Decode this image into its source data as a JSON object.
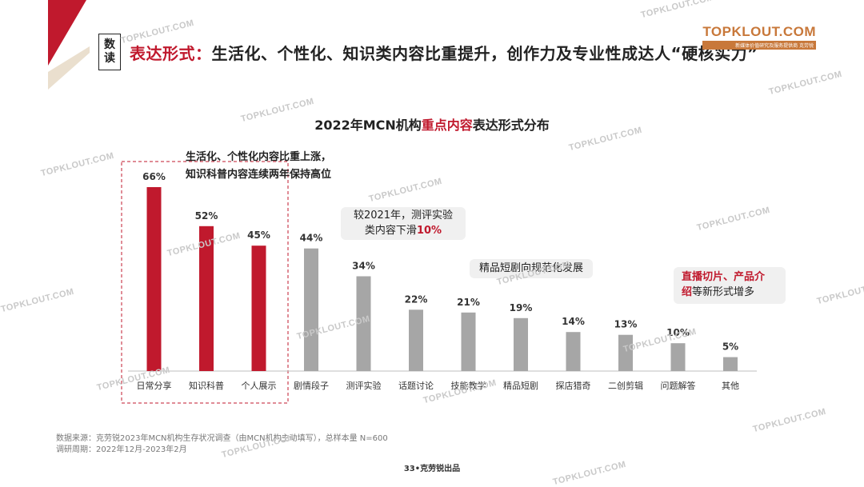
{
  "header": {
    "badge": "数读",
    "headline_prefix": "表达形式：",
    "headline_rest": "生活化、个性化、知识类内容比重提升，创作力及专业性成达人“硬核实力”"
  },
  "logo": {
    "brand": "TOPKLOUT.COM",
    "tagline": "新媒体价值研究及服务提供商 克劳锐"
  },
  "chart_title": {
    "before": "2022年MCN机构",
    "highlight": "重点内容",
    "after": "表达形式分布"
  },
  "chart_data": {
    "type": "bar",
    "title": "2022年MCN机构重点内容表达形式分布",
    "categories": [
      "日常分享",
      "知识科普",
      "个人展示",
      "剧情段子",
      "测评实验",
      "话题讨论",
      "技能教学",
      "精品短剧",
      "探店猎奇",
      "二创剪辑",
      "问题解答",
      "其他"
    ],
    "values": [
      66,
      52,
      45,
      44,
      34,
      22,
      21,
      19,
      14,
      13,
      10,
      5
    ],
    "value_labels": [
      "66%",
      "52%",
      "45%",
      "44%",
      "34%",
      "22%",
      "21%",
      "19%",
      "14%",
      "13%",
      "10%",
      "5%"
    ],
    "highlighted_count": 3,
    "ylim": [
      0,
      70
    ],
    "colors": {
      "highlight": "#c0192d",
      "normal": "#a6a6a6"
    },
    "grid": false
  },
  "annotations": {
    "callout_main_line1": "生活化、个性化内容比重上涨，",
    "callout_main_line2": "知识科普内容连续两年保持高位",
    "bubble_test_line1": "较2021年，测评实验",
    "bubble_test_line2_prefix": "类内容下滑",
    "bubble_test_line2_value": "10%",
    "bubble_drama": "精品短剧向规范化发展",
    "bubble_live_red": "直播切片、产品介",
    "bubble_live_red2": "绍",
    "bubble_live_rest": "等新形式增多"
  },
  "footnote": {
    "source": "数据来源：克劳锐2023年MCN机构生存状况调查（由MCN机构主动填写），总样本量 N=600",
    "period": "调研周期：2022年12月-2023年2月"
  },
  "page_footer": "33•克劳锐出品",
  "watermark": "TOPKLOUT.COM"
}
